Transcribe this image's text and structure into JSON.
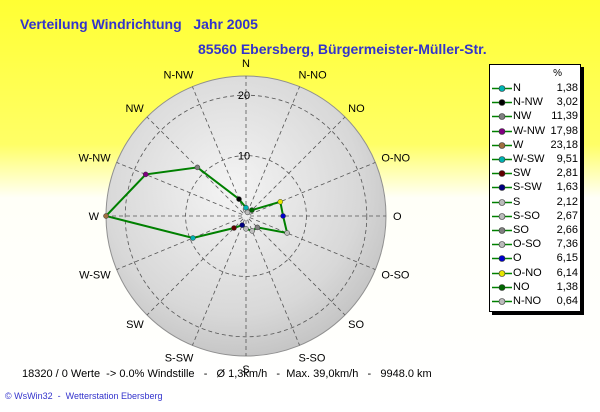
{
  "header": {
    "title": "Verteilung Windrichtung   Jahr 2005",
    "subtitle": "85560 Ebersberg, Bürgermeister-Müller-Str."
  },
  "chart_data": {
    "type": "radar",
    "unit": "%",
    "radial_ticks": [
      10,
      20
    ],
    "rmax": 23.18,
    "directions": [
      "N",
      "N-NW",
      "NW",
      "W-NW",
      "W",
      "W-SW",
      "SW",
      "S-SW",
      "S",
      "S-SO",
      "SO",
      "O-SO",
      "O",
      "O-NO",
      "NO",
      "N-NO"
    ],
    "values": [
      1.38,
      3.02,
      11.39,
      17.98,
      23.18,
      9.51,
      2.81,
      1.63,
      2.12,
      2.67,
      2.66,
      7.36,
      6.15,
      6.14,
      1.38,
      0.64
    ],
    "colors": [
      "#00b3b3",
      "#000000",
      "#808080",
      "#800080",
      "#a07040",
      "#00b0b0",
      "#600000",
      "#000080",
      "#bbbbbb",
      "#bbbbbb",
      "#808080",
      "#bbbbbb",
      "#0000cc",
      "#e6e600",
      "#006600",
      "#bbbbbb"
    ],
    "line_color": "#008000"
  },
  "legend": {
    "unit_header": "%"
  },
  "footer": {
    "stats": "18320 / 0 Werte  -> 0.0% Windstille   -   Ø 1,3km/h   -  Max. 39,0km/h   -   9948.0 km",
    "credit": "© WsWin32  -  Wetterstation Ebersberg"
  }
}
